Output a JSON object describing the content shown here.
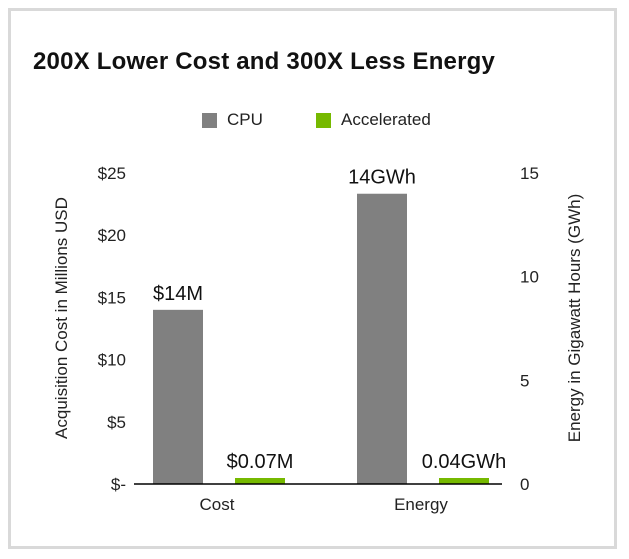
{
  "chart_data": {
    "type": "bar",
    "title": "200X Lower Cost and 300X Less Energy",
    "categories": [
      "Cost",
      "Energy"
    ],
    "series": [
      {
        "name": "CPU",
        "color": "#808080",
        "values": [
          14,
          14
        ],
        "labels": [
          "$14M",
          "14GWh"
        ]
      },
      {
        "name": "Accelerated",
        "color": "#76b900",
        "values": [
          0.07,
          0.04
        ],
        "labels": [
          "$0.07M",
          "0.04GWh"
        ]
      }
    ],
    "axes": {
      "left": {
        "label": "Acquisition Cost in Millions USD",
        "range": [
          0,
          25
        ],
        "ticks": [
          0,
          5,
          10,
          15,
          20,
          25
        ],
        "tick_labels": [
          "$-",
          "$5",
          "$10",
          "$15",
          "$20",
          "$25"
        ],
        "applies_to": "Cost"
      },
      "right": {
        "label": "Energy in Gigawatt Hours (GWh)",
        "range": [
          0,
          15
        ],
        "ticks": [
          0,
          5,
          10,
          15
        ],
        "tick_labels": [
          "0",
          "5",
          "10",
          "15"
        ],
        "applies_to": "Energy"
      }
    },
    "grid": false,
    "legend_position": "top-center"
  }
}
